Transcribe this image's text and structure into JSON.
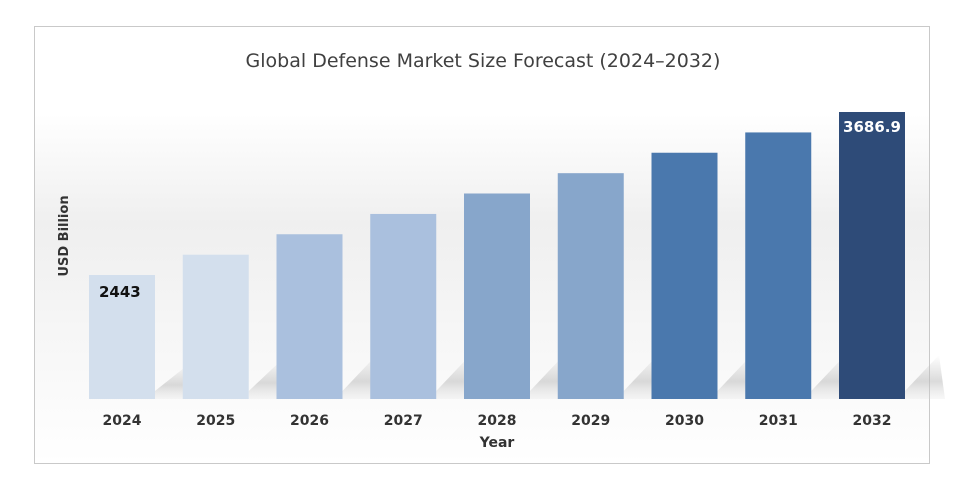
{
  "chart_data": {
    "type": "bar",
    "title": "Global Defense Market Size Forecast (2024–2032)",
    "xlabel": "Year",
    "ylabel": "USD Billion",
    "categories": [
      "2024",
      "2025",
      "2026",
      "2027",
      "2028",
      "2029",
      "2030",
      "2031",
      "2032"
    ],
    "values": [
      2443,
      2598,
      2754,
      2909,
      3065,
      3220,
      3376,
      3531,
      3686.9
    ],
    "data_labels": [
      {
        "index": 0,
        "text": "2443"
      },
      {
        "index": 8,
        "text": "3686.9"
      }
    ],
    "colors": [
      "#d3dfed",
      "#d3dfed",
      "#aac0de",
      "#aac0de",
      "#87a6cb",
      "#87a6cb",
      "#4a78ad",
      "#4a78ad",
      "#2e4b78"
    ],
    "data_label_colors": [
      "#111111",
      "#ffffff"
    ],
    "grid": false,
    "legend": "none"
  }
}
